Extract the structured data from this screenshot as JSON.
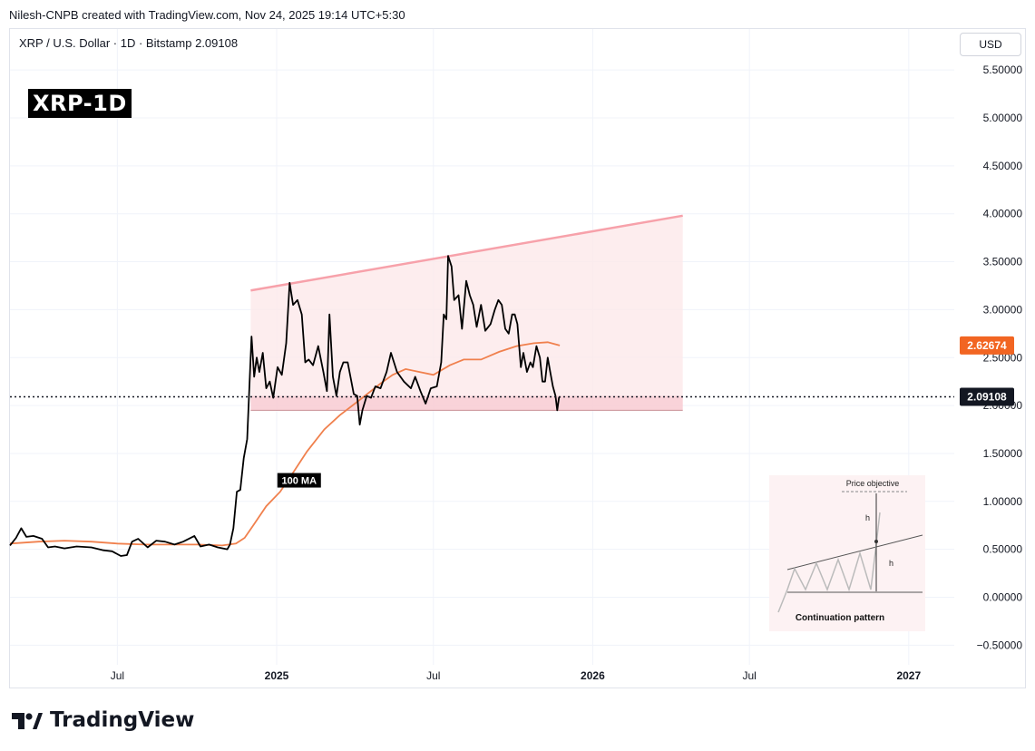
{
  "header": {
    "credit": "Nilesh-CNPB created with TradingView.com, Nov 24, 2025 19:14 UTC+5:30",
    "symbol_line": "XRP / U.S. Dollar · 1D · Bitstamp  2.09108",
    "currency": "USD",
    "title_badge": "XRP-1D"
  },
  "footer": {
    "brand": "TradingView"
  },
  "colors": {
    "price_line": "#000000",
    "ma_line": "#f0804d",
    "ma_label_bg": "#f26522",
    "pattern_fill": "#fde8ea",
    "pattern_edge": "#f7a1aa",
    "support_band": "#f8ccd3",
    "last_price_bg": "#131722"
  },
  "chart_data": {
    "type": "line",
    "y_axis": {
      "range": [
        -0.5,
        5.5
      ],
      "tick_labels": [
        "5.50000",
        "5.00000",
        "4.50000",
        "4.00000",
        "3.50000",
        "3.00000",
        "2.50000",
        "2.00000",
        "1.50000",
        "1.00000",
        "0.50000",
        "0.00000",
        "−0.50000"
      ]
    },
    "x_axis": {
      "range": [
        "2024-02-28",
        "2027-02-10"
      ],
      "ticks": [
        {
          "date": "2024-07-01",
          "label": "Jul",
          "bold": false
        },
        {
          "date": "2025-01-01",
          "label": "2025",
          "bold": true
        },
        {
          "date": "2025-07-01",
          "label": "Jul",
          "bold": false
        },
        {
          "date": "2026-01-01",
          "label": "2026",
          "bold": true
        },
        {
          "date": "2026-07-01",
          "label": "Jul",
          "bold": false
        },
        {
          "date": "2027-01-01",
          "label": "2027",
          "bold": true
        }
      ]
    },
    "series": [
      {
        "name": "XRP",
        "points": [
          [
            "2024-02-28",
            0.54
          ],
          [
            "2024-03-06",
            0.62
          ],
          [
            "2024-03-12",
            0.72
          ],
          [
            "2024-03-18",
            0.63
          ],
          [
            "2024-03-26",
            0.64
          ],
          [
            "2024-04-05",
            0.61
          ],
          [
            "2024-04-12",
            0.52
          ],
          [
            "2024-04-20",
            0.53
          ],
          [
            "2024-05-01",
            0.51
          ],
          [
            "2024-05-15",
            0.53
          ],
          [
            "2024-06-01",
            0.52
          ],
          [
            "2024-06-15",
            0.49
          ],
          [
            "2024-06-25",
            0.48
          ],
          [
            "2024-07-05",
            0.43
          ],
          [
            "2024-07-12",
            0.44
          ],
          [
            "2024-07-18",
            0.58
          ],
          [
            "2024-07-25",
            0.61
          ],
          [
            "2024-08-05",
            0.52
          ],
          [
            "2024-08-15",
            0.59
          ],
          [
            "2024-08-25",
            0.58
          ],
          [
            "2024-09-05",
            0.55
          ],
          [
            "2024-09-15",
            0.58
          ],
          [
            "2024-09-28",
            0.64
          ],
          [
            "2024-10-05",
            0.53
          ],
          [
            "2024-10-15",
            0.55
          ],
          [
            "2024-10-25",
            0.52
          ],
          [
            "2024-11-05",
            0.5
          ],
          [
            "2024-11-08",
            0.55
          ],
          [
            "2024-11-12",
            0.72
          ],
          [
            "2024-11-16",
            1.1
          ],
          [
            "2024-11-20",
            1.12
          ],
          [
            "2024-11-24",
            1.45
          ],
          [
            "2024-11-28",
            1.65
          ],
          [
            "2024-12-01",
            2.3
          ],
          [
            "2024-12-03",
            2.72
          ],
          [
            "2024-12-06",
            2.3
          ],
          [
            "2024-12-09",
            2.5
          ],
          [
            "2024-12-12",
            2.35
          ],
          [
            "2024-12-16",
            2.55
          ],
          [
            "2024-12-20",
            2.18
          ],
          [
            "2024-12-24",
            2.25
          ],
          [
            "2024-12-28",
            2.08
          ],
          [
            "2025-01-02",
            2.4
          ],
          [
            "2025-01-07",
            2.32
          ],
          [
            "2025-01-12",
            2.65
          ],
          [
            "2025-01-16",
            3.28
          ],
          [
            "2025-01-20",
            3.05
          ],
          [
            "2025-01-25",
            3.1
          ],
          [
            "2025-01-30",
            2.95
          ],
          [
            "2025-02-03",
            2.45
          ],
          [
            "2025-02-07",
            2.48
          ],
          [
            "2025-02-12",
            2.42
          ],
          [
            "2025-02-18",
            2.62
          ],
          [
            "2025-02-24",
            2.35
          ],
          [
            "2025-02-28",
            2.15
          ],
          [
            "2025-03-03",
            2.95
          ],
          [
            "2025-03-07",
            2.3
          ],
          [
            "2025-03-11",
            2.1
          ],
          [
            "2025-03-15",
            2.35
          ],
          [
            "2025-03-19",
            2.45
          ],
          [
            "2025-03-24",
            2.45
          ],
          [
            "2025-03-31",
            2.12
          ],
          [
            "2025-04-04",
            2.1
          ],
          [
            "2025-04-07",
            1.8
          ],
          [
            "2025-04-10",
            1.95
          ],
          [
            "2025-04-15",
            2.1
          ],
          [
            "2025-04-20",
            2.08
          ],
          [
            "2025-04-25",
            2.2
          ],
          [
            "2025-05-01",
            2.18
          ],
          [
            "2025-05-08",
            2.35
          ],
          [
            "2025-05-13",
            2.55
          ],
          [
            "2025-05-20",
            2.35
          ],
          [
            "2025-05-28",
            2.25
          ],
          [
            "2025-06-05",
            2.18
          ],
          [
            "2025-06-10",
            2.3
          ],
          [
            "2025-06-16",
            2.15
          ],
          [
            "2025-06-22",
            2.02
          ],
          [
            "2025-06-28",
            2.18
          ],
          [
            "2025-07-05",
            2.2
          ],
          [
            "2025-07-10",
            2.45
          ],
          [
            "2025-07-13",
            2.95
          ],
          [
            "2025-07-16",
            2.9
          ],
          [
            "2025-07-18",
            3.56
          ],
          [
            "2025-07-22",
            3.45
          ],
          [
            "2025-07-25",
            3.1
          ],
          [
            "2025-07-30",
            3.15
          ],
          [
            "2025-08-03",
            2.8
          ],
          [
            "2025-08-08",
            3.3
          ],
          [
            "2025-08-12",
            3.15
          ],
          [
            "2025-08-16",
            3.05
          ],
          [
            "2025-08-20",
            2.82
          ],
          [
            "2025-08-25",
            3.05
          ],
          [
            "2025-08-30",
            2.78
          ],
          [
            "2025-09-05",
            2.85
          ],
          [
            "2025-09-10",
            3.0
          ],
          [
            "2025-09-14",
            3.1
          ],
          [
            "2025-09-18",
            3.05
          ],
          [
            "2025-09-22",
            2.8
          ],
          [
            "2025-09-26",
            2.75
          ],
          [
            "2025-09-30",
            2.95
          ],
          [
            "2025-10-03",
            2.95
          ],
          [
            "2025-10-06",
            2.85
          ],
          [
            "2025-10-10",
            2.4
          ],
          [
            "2025-10-13",
            2.55
          ],
          [
            "2025-10-17",
            2.35
          ],
          [
            "2025-10-21",
            2.45
          ],
          [
            "2025-10-24",
            2.4
          ],
          [
            "2025-10-28",
            2.62
          ],
          [
            "2025-11-01",
            2.5
          ],
          [
            "2025-11-04",
            2.25
          ],
          [
            "2025-11-07",
            2.25
          ],
          [
            "2025-11-10",
            2.5
          ],
          [
            "2025-11-13",
            2.35
          ],
          [
            "2025-11-16",
            2.2
          ],
          [
            "2025-11-19",
            2.1
          ],
          [
            "2025-11-21",
            1.95
          ],
          [
            "2025-11-23",
            2.08
          ],
          [
            "2025-11-24",
            2.09108
          ]
        ]
      },
      {
        "name": "100 MA",
        "points": [
          [
            "2024-02-28",
            0.56
          ],
          [
            "2024-04-01",
            0.58
          ],
          [
            "2024-05-01",
            0.59
          ],
          [
            "2024-06-01",
            0.58
          ],
          [
            "2024-07-01",
            0.56
          ],
          [
            "2024-08-01",
            0.55
          ],
          [
            "2024-09-01",
            0.55
          ],
          [
            "2024-10-01",
            0.55
          ],
          [
            "2024-10-30",
            0.54
          ],
          [
            "2024-11-15",
            0.56
          ],
          [
            "2024-11-25",
            0.62
          ],
          [
            "2024-12-05",
            0.75
          ],
          [
            "2024-12-20",
            0.95
          ],
          [
            "2025-01-05",
            1.1
          ],
          [
            "2025-01-20",
            1.3
          ],
          [
            "2025-02-05",
            1.52
          ],
          [
            "2025-02-25",
            1.75
          ],
          [
            "2025-03-15",
            1.9
          ],
          [
            "2025-04-10",
            2.08
          ],
          [
            "2025-05-01",
            2.23
          ],
          [
            "2025-05-15",
            2.32
          ],
          [
            "2025-05-30",
            2.38
          ],
          [
            "2025-06-15",
            2.35
          ],
          [
            "2025-07-01",
            2.32
          ],
          [
            "2025-07-20",
            2.42
          ],
          [
            "2025-08-05",
            2.48
          ],
          [
            "2025-08-25",
            2.48
          ],
          [
            "2025-09-15",
            2.56
          ],
          [
            "2025-10-05",
            2.62
          ],
          [
            "2025-10-25",
            2.65
          ],
          [
            "2025-11-10",
            2.66
          ],
          [
            "2025-11-24",
            2.62674
          ]
        ]
      }
    ],
    "pattern": {
      "upper_trendline": [
        [
          "2024-12-02",
          3.2
        ],
        [
          "2026-04-15",
          3.98
        ]
      ],
      "lower_support": [
        [
          "2024-12-02",
          1.95
        ],
        [
          "2026-04-15",
          1.95
        ]
      ],
      "support_band": [
        1.95,
        2.1
      ]
    },
    "ma_label": "100 MA",
    "last_values": {
      "ma": "2.62674",
      "price": "2.09108"
    },
    "inset": {
      "price_objective_label": "Price objective",
      "height_label_top": "h",
      "height_label_bottom": "h",
      "caption": "Continuation pattern"
    }
  }
}
